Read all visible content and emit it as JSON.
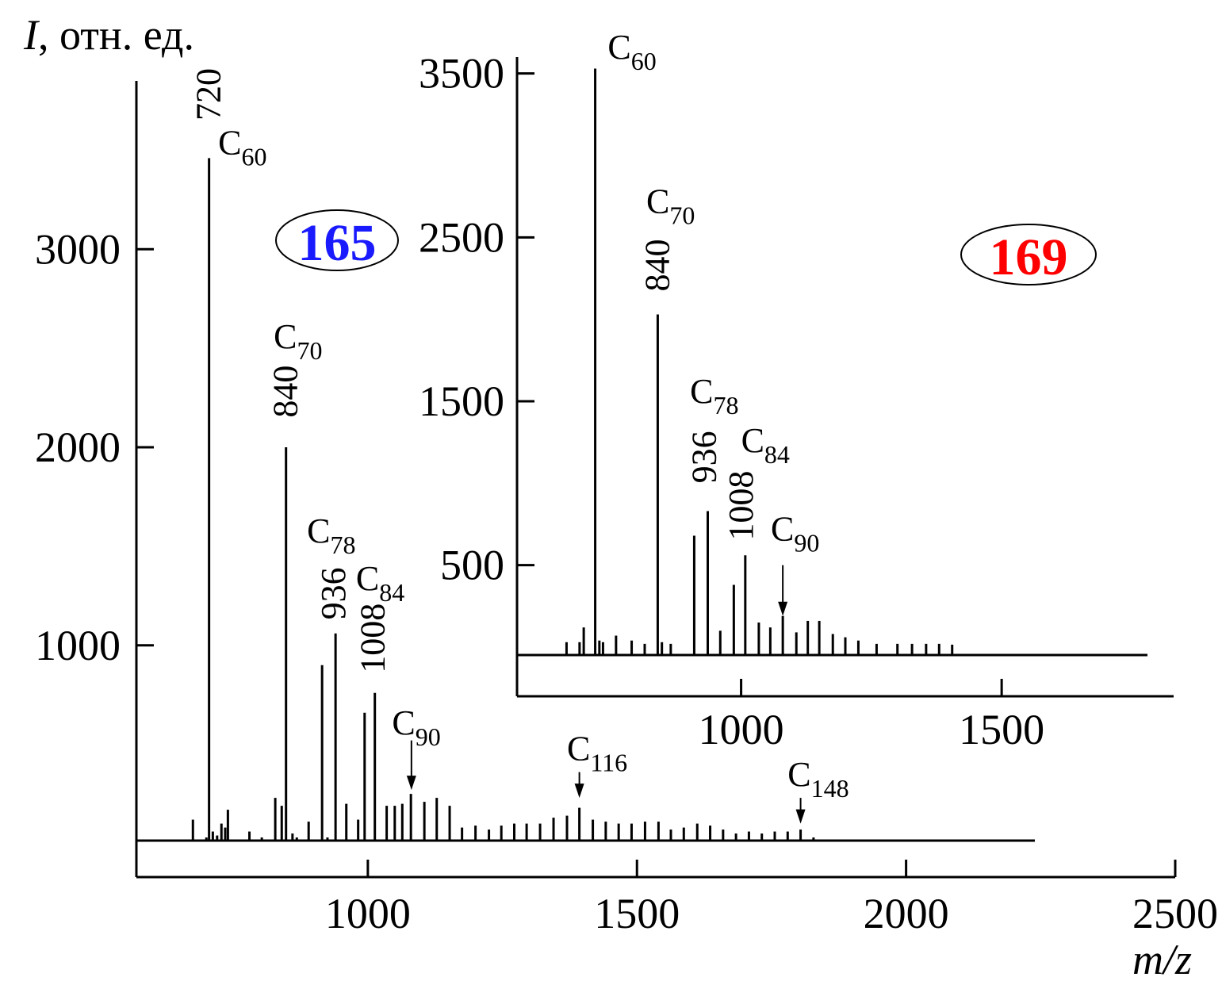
{
  "chart_data": [
    {
      "type": "bar",
      "badge": "165",
      "badge_color": "#1a1aff",
      "ylabel": "I, отн. ед.",
      "xlabel": "m/z",
      "xlim": [
        570,
        2500
      ],
      "ylim": [
        -170,
        3850
      ],
      "xticks": [
        1000,
        1500,
        2000,
        2500
      ],
      "yticks": [
        1000,
        2000,
        3000
      ],
      "peaks": [
        {
          "x": 655,
          "y": 20
        },
        {
          "x": 675,
          "y": 120
        },
        {
          "x": 682,
          "y": 20
        },
        {
          "x": 700,
          "y": 30
        },
        {
          "x": 705,
          "y": 3460
        },
        {
          "x": 712,
          "y": 60
        },
        {
          "x": 720,
          "y": 40
        },
        {
          "x": 728,
          "y": 100
        },
        {
          "x": 735,
          "y": 80
        },
        {
          "x": 740,
          "y": 170
        },
        {
          "x": 760,
          "y": 20
        },
        {
          "x": 780,
          "y": 60
        },
        {
          "x": 803,
          "y": 30
        },
        {
          "x": 828,
          "y": 230
        },
        {
          "x": 840,
          "y": 190
        },
        {
          "x": 848,
          "y": 2000
        },
        {
          "x": 860,
          "y": 50
        },
        {
          "x": 868,
          "y": 30
        },
        {
          "x": 890,
          "y": 110
        },
        {
          "x": 900,
          "y": 20
        },
        {
          "x": 915,
          "y": 900
        },
        {
          "x": 925,
          "y": 30
        },
        {
          "x": 940,
          "y": 1060
        },
        {
          "x": 960,
          "y": 200
        },
        {
          "x": 982,
          "y": 120
        },
        {
          "x": 994,
          "y": 660
        },
        {
          "x": 1013,
          "y": 760
        },
        {
          "x": 1035,
          "y": 190
        },
        {
          "x": 1050,
          "y": 190
        },
        {
          "x": 1064,
          "y": 200
        },
        {
          "x": 1080,
          "y": 250
        },
        {
          "x": 1105,
          "y": 210
        },
        {
          "x": 1128,
          "y": 230
        },
        {
          "x": 1152,
          "y": 190
        },
        {
          "x": 1175,
          "y": 80
        },
        {
          "x": 1200,
          "y": 90
        },
        {
          "x": 1225,
          "y": 70
        },
        {
          "x": 1248,
          "y": 90
        },
        {
          "x": 1272,
          "y": 100
        },
        {
          "x": 1295,
          "y": 100
        },
        {
          "x": 1320,
          "y": 100
        },
        {
          "x": 1345,
          "y": 130
        },
        {
          "x": 1370,
          "y": 140
        },
        {
          "x": 1393,
          "y": 180
        },
        {
          "x": 1418,
          "y": 120
        },
        {
          "x": 1442,
          "y": 110
        },
        {
          "x": 1466,
          "y": 100
        },
        {
          "x": 1490,
          "y": 100
        },
        {
          "x": 1515,
          "y": 110
        },
        {
          "x": 1540,
          "y": 110
        },
        {
          "x": 1563,
          "y": 70
        },
        {
          "x": 1587,
          "y": 80
        },
        {
          "x": 1612,
          "y": 100
        },
        {
          "x": 1636,
          "y": 90
        },
        {
          "x": 1660,
          "y": 70
        },
        {
          "x": 1684,
          "y": 50
        },
        {
          "x": 1708,
          "y": 60
        },
        {
          "x": 1732,
          "y": 50
        },
        {
          "x": 1756,
          "y": 60
        },
        {
          "x": 1780,
          "y": 60
        },
        {
          "x": 1804,
          "y": 70
        },
        {
          "x": 1828,
          "y": 30
        },
        {
          "x": 1852,
          "y": 20
        },
        {
          "x": 1876,
          "y": 20
        },
        {
          "x": 1900,
          "y": 20
        },
        {
          "x": 1925,
          "y": 20
        },
        {
          "x": 1950,
          "y": 20
        },
        {
          "x": 1975,
          "y": 15
        },
        {
          "x": 2000,
          "y": 15
        },
        {
          "x": 2025,
          "y": 15
        },
        {
          "x": 2060,
          "y": 20
        },
        {
          "x": 2085,
          "y": 15
        },
        {
          "x": 2135,
          "y": 15
        },
        {
          "x": 2160,
          "y": 10
        }
      ],
      "labels": [
        {
          "text": "720",
          "x": 705,
          "y": 3650,
          "rotate": true
        },
        {
          "text": "C",
          "sub": "60",
          "x": 722,
          "y": 3480
        },
        {
          "text": "C",
          "sub": "70",
          "x": 825,
          "y": 2500
        },
        {
          "text": "840",
          "x": 848,
          "y": 2150,
          "rotate": true
        },
        {
          "text": "C",
          "sub": "78",
          "x": 887,
          "y": 1520
        },
        {
          "text": "936",
          "x": 937,
          "y": 1130,
          "rotate": true
        },
        {
          "text": "C",
          "sub": "84",
          "x": 978,
          "y": 1280
        },
        {
          "text": "1008",
          "x": 1010,
          "y": 860,
          "rotate": true
        },
        {
          "text": "C",
          "sub": "90",
          "x": 1045,
          "y": 550
        },
        {
          "text": "C",
          "sub": "116",
          "x": 1370,
          "y": 420
        },
        {
          "text": "C",
          "sub": "148",
          "x": 1780,
          "y": 290
        }
      ],
      "arrows": [
        {
          "x": 1081,
          "y_top": 520,
          "y_bottom": 270
        },
        {
          "x": 1393,
          "y_top": 360,
          "y_bottom": 230
        },
        {
          "x": 1804,
          "y_top": 230,
          "y_bottom": 100
        }
      ]
    },
    {
      "type": "bar",
      "badge": "169",
      "badge_color": "#ff0000",
      "xlim": [
        570,
        1830
      ],
      "ylim": [
        -300,
        3600
      ],
      "xticks": [
        1000,
        1500
      ],
      "yticks": [
        500,
        1500,
        2500,
        3500
      ],
      "peaks": [
        {
          "x": 665,
          "y": 30
        },
        {
          "x": 690,
          "y": 30
        },
        {
          "x": 698,
          "y": 120
        },
        {
          "x": 720,
          "y": 3530
        },
        {
          "x": 728,
          "y": 40
        },
        {
          "x": 735,
          "y": 30
        },
        {
          "x": 760,
          "y": 70
        },
        {
          "x": 790,
          "y": 40
        },
        {
          "x": 815,
          "y": 20
        },
        {
          "x": 840,
          "y": 2030
        },
        {
          "x": 848,
          "y": 30
        },
        {
          "x": 865,
          "y": 20
        },
        {
          "x": 910,
          "y": 680
        },
        {
          "x": 936,
          "y": 830
        },
        {
          "x": 960,
          "y": 100
        },
        {
          "x": 986,
          "y": 380
        },
        {
          "x": 1008,
          "y": 560
        },
        {
          "x": 1034,
          "y": 150
        },
        {
          "x": 1056,
          "y": 120
        },
        {
          "x": 1080,
          "y": 190
        },
        {
          "x": 1106,
          "y": 90
        },
        {
          "x": 1128,
          "y": 160
        },
        {
          "x": 1150,
          "y": 160
        },
        {
          "x": 1176,
          "y": 80
        },
        {
          "x": 1200,
          "y": 60
        },
        {
          "x": 1225,
          "y": 40
        },
        {
          "x": 1260,
          "y": 20
        },
        {
          "x": 1300,
          "y": 20
        },
        {
          "x": 1328,
          "y": 20
        },
        {
          "x": 1355,
          "y": 20
        },
        {
          "x": 1380,
          "y": 20
        },
        {
          "x": 1405,
          "y": 15
        }
      ],
      "labels": [
        {
          "text": "C",
          "sub": "60",
          "x": 744,
          "y": 3590
        },
        {
          "text": "C",
          "sub": "70",
          "x": 818,
          "y": 2650
        },
        {
          "text": "840",
          "x": 840,
          "y": 2170,
          "rotate": true
        },
        {
          "text": "C",
          "sub": "78",
          "x": 902,
          "y": 1490
        },
        {
          "text": "936",
          "x": 930,
          "y": 1000,
          "rotate": true
        },
        {
          "text": "C",
          "sub": "84",
          "x": 1000,
          "y": 1190
        },
        {
          "text": "1008",
          "x": 1001,
          "y": 650,
          "rotate": true
        },
        {
          "text": "C",
          "sub": "90",
          "x": 1057,
          "y": 650
        }
      ],
      "arrows": [
        {
          "x": 1080,
          "y_top": 500,
          "y_bottom": 190
        }
      ]
    }
  ]
}
